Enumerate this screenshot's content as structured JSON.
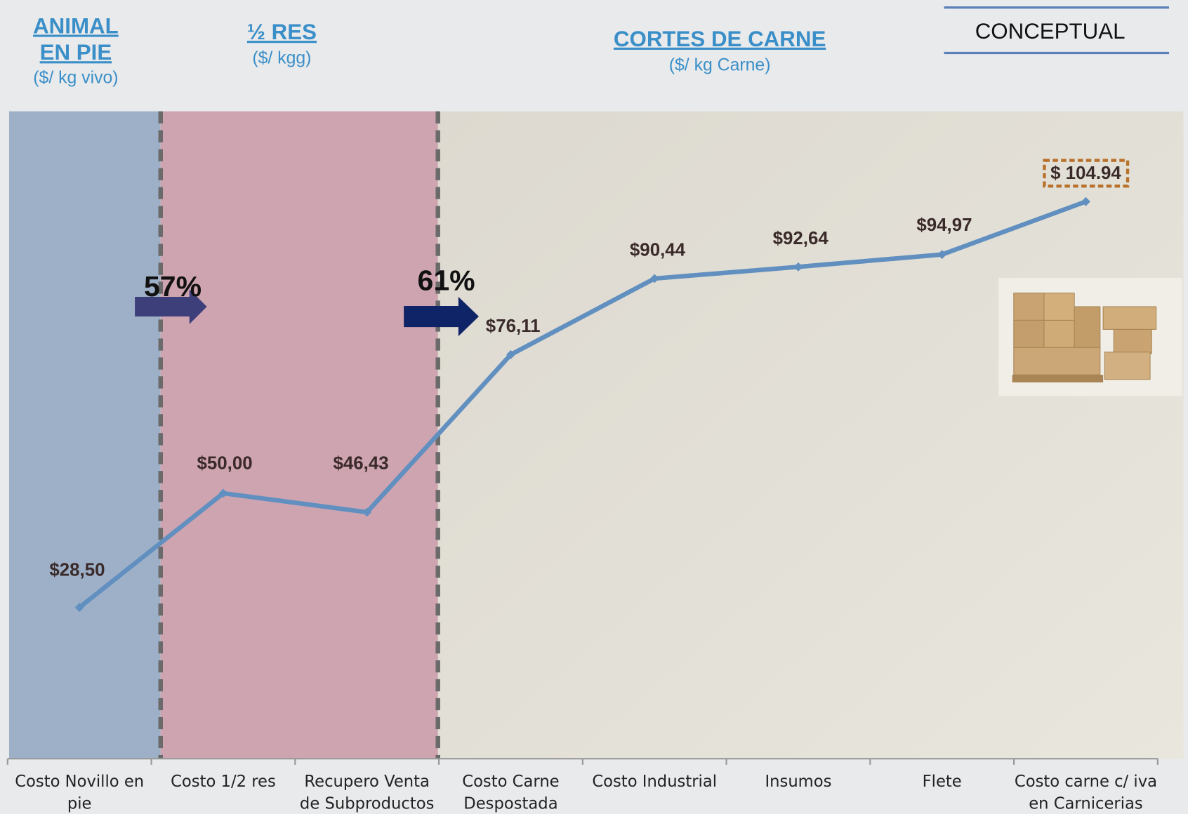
{
  "chart_data": {
    "type": "line",
    "categories": [
      "Costo Novillo en pie",
      "Costo 1/2 res",
      "Recupero  Venta de Subproductos",
      "Costo Carne Despostada",
      "Costo Industrial",
      "Insumos",
      "Flete",
      "Costo carne c/ iva en Carnicerias"
    ],
    "series": [
      {
        "color": "#6190c0",
        "values": [
          28.5,
          50.0,
          46.43,
          76.11,
          90.44,
          92.64,
          94.97,
          104.94
        ],
        "value_labels": [
          "$28,50",
          "$50,00",
          "$46,43",
          "$76,11",
          "$90,44",
          "$92,64",
          "$94,97",
          "$ 104.94"
        ]
      }
    ],
    "ylim": [
      0,
      120
    ],
    "sections": [
      {
        "title": [
          "ANIMAL",
          "EN PIE"
        ],
        "subtitle": "($/ kg vivo)"
      },
      {
        "title": [
          "½ RES"
        ],
        "subtitle": "($/ kgg)"
      },
      {
        "title": [
          "CORTES DE CARNE"
        ],
        "subtitle": "($/ kg Carne)"
      }
    ],
    "badge": "CONCEPTUAL",
    "annotations": [
      "57%",
      "61%"
    ]
  }
}
